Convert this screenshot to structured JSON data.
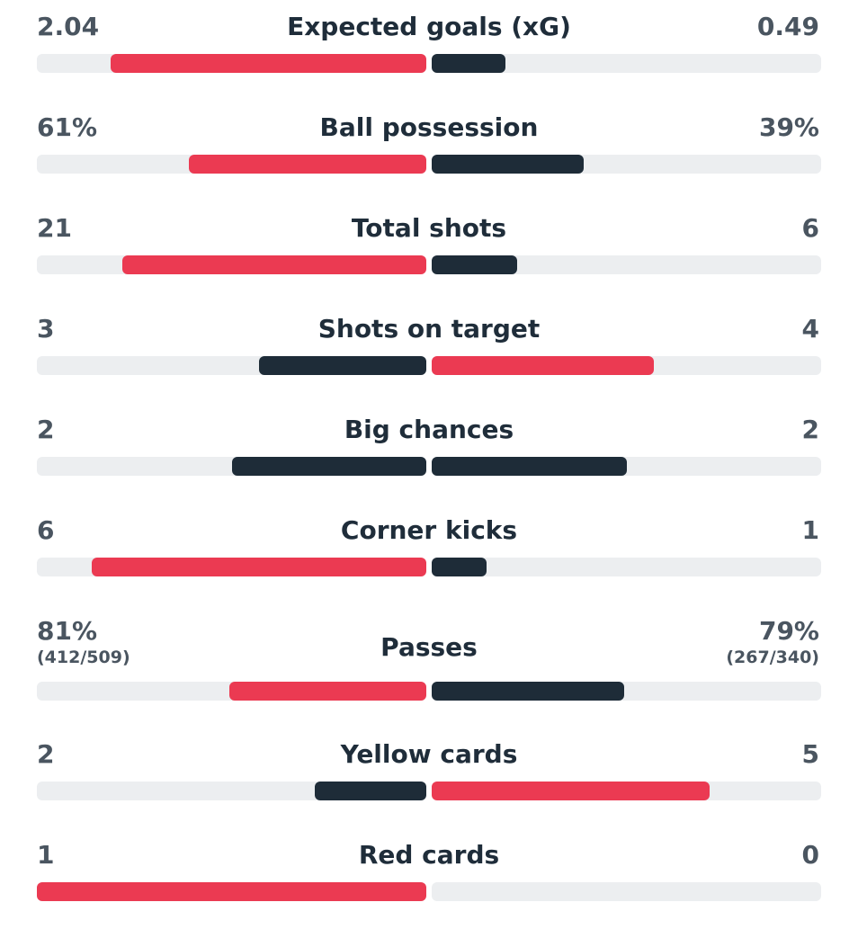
{
  "colors": {
    "winner": "#eb3a52",
    "loser": "#1e2c38",
    "track": "#eceef0"
  },
  "stats": [
    {
      "label": "Expected goals (xG)",
      "home": "2.04",
      "away": "0.49",
      "home_fill": 0.81,
      "away_fill": 0.19,
      "home_color": "winner",
      "away_color": "loser"
    },
    {
      "label": "Ball possession",
      "home": "61%",
      "away": "39%",
      "home_fill": 0.61,
      "away_fill": 0.39,
      "home_color": "winner",
      "away_color": "loser"
    },
    {
      "label": "Total shots",
      "home": "21",
      "away": "6",
      "home_fill": 0.78,
      "away_fill": 0.22,
      "home_color": "winner",
      "away_color": "loser"
    },
    {
      "label": "Shots on target",
      "home": "3",
      "away": "4",
      "home_fill": 0.43,
      "away_fill": 0.57,
      "home_color": "loser",
      "away_color": "winner"
    },
    {
      "label": "Big chances",
      "home": "2",
      "away": "2",
      "home_fill": 0.5,
      "away_fill": 0.5,
      "home_color": "loser",
      "away_color": "loser"
    },
    {
      "label": "Corner kicks",
      "home": "6",
      "away": "1",
      "home_fill": 0.86,
      "away_fill": 0.14,
      "home_color": "winner",
      "away_color": "loser"
    },
    {
      "label": "Passes",
      "home": "81%",
      "away": "79%",
      "home_sub": "(412/509)",
      "away_sub": "(267/340)",
      "home_fill": 0.506,
      "away_fill": 0.494,
      "home_color": "winner",
      "away_color": "loser"
    },
    {
      "label": "Yellow cards",
      "home": "2",
      "away": "5",
      "home_fill": 0.286,
      "away_fill": 0.714,
      "home_color": "loser",
      "away_color": "winner"
    },
    {
      "label": "Red cards",
      "home": "1",
      "away": "0",
      "home_fill": 1.0,
      "away_fill": 0.0,
      "home_color": "winner",
      "away_color": "loser"
    }
  ]
}
